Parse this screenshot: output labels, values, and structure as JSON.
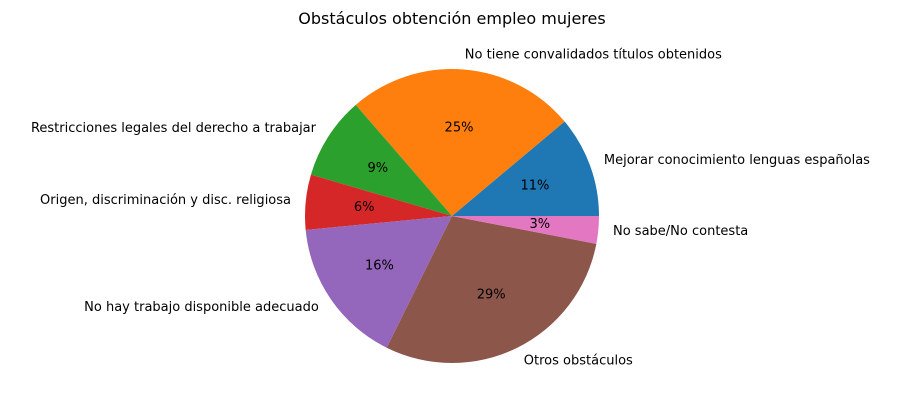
{
  "chart_data": {
    "type": "pie",
    "title": "Obstáculos obtención empleo mujeres",
    "slices": [
      {
        "label": "Mejorar conocimiento lenguas españolas",
        "value": 11,
        "pct_label": "11%",
        "color": "#1f77b4"
      },
      {
        "label": "No tiene convalidados títulos obtenidos",
        "value": 25,
        "pct_label": "25%",
        "color": "#ff7f0e"
      },
      {
        "label": "Restricciones legales del derecho a trabajar",
        "value": 9,
        "pct_label": "9%",
        "color": "#2ca02c"
      },
      {
        "label": "Origen, discriminación y disc. religiosa",
        "value": 6,
        "pct_label": "6%",
        "color": "#d62728"
      },
      {
        "label": "No hay trabajo disponible adecuado",
        "value": 16,
        "pct_label": "16%",
        "color": "#9467bd"
      },
      {
        "label": "Otros obstáculos",
        "value": 29,
        "pct_label": "29%",
        "color": "#8c564b"
      },
      {
        "label": "No sabe/No contesta",
        "value": 3,
        "pct_label": "3%",
        "color": "#e377c2"
      }
    ],
    "start_angle_deg": 0,
    "direction": "counterclockwise"
  }
}
